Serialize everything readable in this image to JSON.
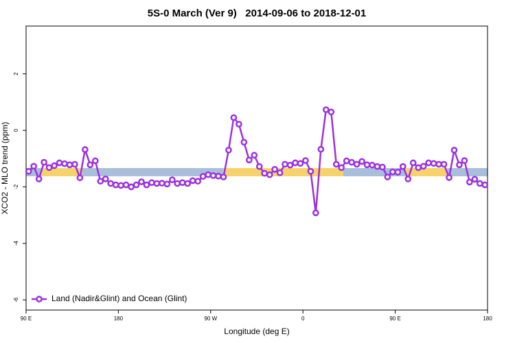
{
  "chart_data": {
    "type": "line",
    "title": "5S-0 March (Ver 9)   2014-09-06 to 2018-12-01",
    "x_label": "Longitude (deg E)",
    "y_label": "XCO2 - MLO trend (ppm)",
    "x": [
      92.5,
      97.5,
      102.5,
      107.5,
      112.5,
      117.5,
      122.5,
      127.5,
      132.5,
      137.5,
      142.5,
      147.5,
      152.5,
      157.5,
      162.5,
      167.5,
      172.5,
      177.5,
      182.5,
      187.5,
      192.5,
      197.5,
      202.5,
      207.5,
      212.5,
      217.5,
      222.5,
      227.5,
      232.5,
      237.5,
      242.5,
      247.5,
      252.5,
      257.5,
      262.5,
      267.5,
      272.5,
      277.5,
      282.5,
      287.5,
      292.5,
      297.5,
      302.5,
      307.5,
      312.5,
      317.5,
      322.5,
      327.5,
      332.5,
      337.5,
      342.5,
      347.5,
      352.5,
      357.5,
      362.5,
      367.5,
      372.5,
      377.5,
      382.5,
      387.5,
      392.5,
      397.5,
      402.5,
      407.5,
      412.5,
      417.5,
      422.5,
      427.5,
      432.5,
      437.5,
      442.5,
      447.5,
      452.5,
      457.5,
      462.5,
      467.5,
      472.5,
      477.5,
      482.5,
      487.5,
      492.5,
      497.5,
      502.5,
      507.5,
      512.5,
      517.5,
      522.5,
      527.5,
      532.5,
      537.5
    ],
    "series": [
      {
        "name": "Land (Nadir&Glint) and Ocean (Glint)",
        "color": "#9b30e0",
        "values": [
          -1.45,
          -1.27,
          -1.72,
          -1.13,
          -1.32,
          -1.25,
          -1.15,
          -1.18,
          -1.22,
          -1.2,
          -1.68,
          -0.68,
          -1.22,
          -1.08,
          -1.8,
          -1.72,
          -1.88,
          -1.93,
          -1.95,
          -1.93,
          -2.0,
          -1.93,
          -1.82,
          -1.93,
          -1.85,
          -1.88,
          -1.87,
          -1.9,
          -1.75,
          -1.88,
          -1.85,
          -1.88,
          -1.78,
          -1.8,
          -1.63,
          -1.57,
          -1.6,
          -1.62,
          -1.65,
          -0.7,
          0.45,
          0.22,
          -0.42,
          -1.05,
          -0.88,
          -1.28,
          -1.52,
          -1.57,
          -1.38,
          -1.5,
          -1.2,
          -1.23,
          -1.15,
          -1.17,
          -1.07,
          -1.45,
          -2.92,
          -0.67,
          0.73,
          0.65,
          -1.2,
          -1.32,
          -1.08,
          -1.13,
          -1.2,
          -1.1,
          -1.22,
          -1.23,
          -1.28,
          -1.3,
          -1.65,
          -1.47,
          -1.48,
          -1.28,
          -1.72,
          -1.15,
          -1.32,
          -1.27,
          -1.15,
          -1.17,
          -1.2,
          -1.2,
          -1.67,
          -0.7,
          -1.22,
          -1.07,
          -1.83,
          -1.73,
          -1.88,
          -1.93
        ]
      }
    ],
    "xlim": [
      90,
      540
    ],
    "xticks": [
      {
        "value": 90,
        "label": "90 E"
      },
      180,
      {
        "value": 270,
        "label": "90 W"
      },
      {
        "value": 360,
        "label": "0"
      },
      {
        "value": 450,
        "label": "90 E"
      },
      {
        "value": 540,
        "label": "180"
      }
    ],
    "ylim": [
      -6.36,
      3.69
    ],
    "yticks": [
      2,
      0,
      -2,
      -4,
      -6
    ],
    "legend": "bottom-left"
  }
}
